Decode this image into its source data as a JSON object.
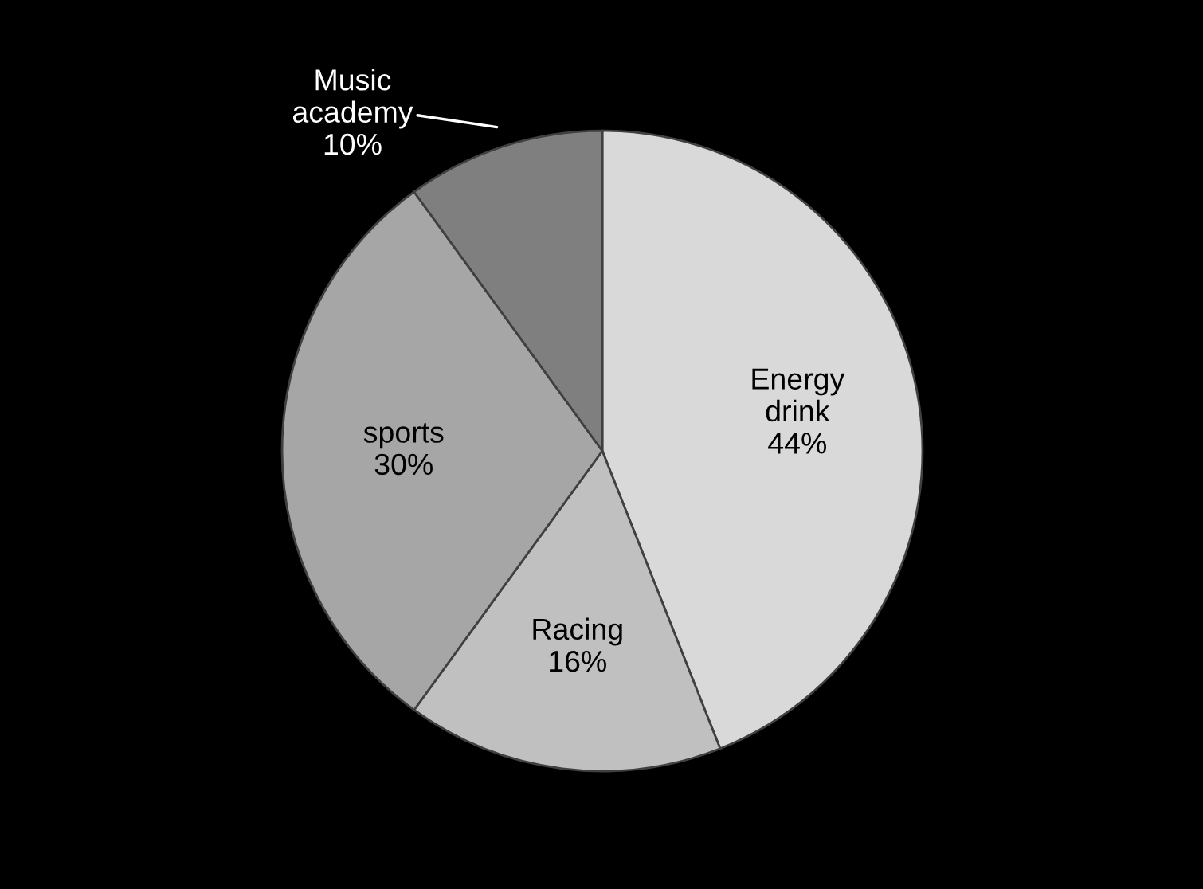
{
  "chart_data": {
    "type": "pie",
    "categories": [
      "Energy drink",
      "Racing",
      "sports",
      "Music academy"
    ],
    "values": [
      44,
      16,
      30,
      10
    ],
    "colors": [
      "#d9d9d9",
      "#c0c0c0",
      "#a6a6a6",
      "#7f7f7f"
    ],
    "value_labels": [
      "44%",
      "16%",
      "30%",
      "10%"
    ],
    "legend": false
  }
}
